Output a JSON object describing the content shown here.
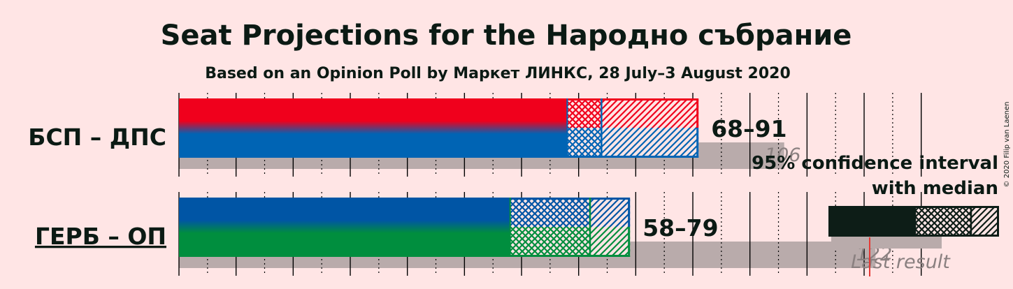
{
  "title": "Seat Projections for the Народно събрание",
  "subtitle": "Based on an Opinion Poll by Маркет ЛИНКС, 28 July–3 August 2020",
  "copyright": "© 2020 Filip van Laenen",
  "chart_data": {
    "type": "bar",
    "xlim": [
      0,
      130
    ],
    "majority": 121,
    "parties": [
      {
        "name": "БСП – ДПС",
        "underlined": false,
        "low": 68,
        "ci_mid_low": 74,
        "median": 74,
        "ci_mid_high": 75,
        "high": 91,
        "range_label": "68–91",
        "last_result": 106,
        "last_label": "106",
        "colors": [
          "#F0001C",
          "#0064B4"
        ]
      },
      {
        "name": "ГЕРБ – ОП",
        "underlined": true,
        "low": 58,
        "ci_mid_low": 58,
        "median": 72,
        "ci_mid_high": 72,
        "high": 79,
        "range_label": "58–79",
        "last_result": 122,
        "last_label": "122",
        "colors": [
          "#0055A5",
          "#008E3E"
        ]
      }
    ],
    "legend": {
      "line1": "95% confidence interval",
      "line2": "with median",
      "last_result": "Last result"
    },
    "colors": {
      "background": "#FFE5E5",
      "last_result_bar": "#B9ABAB",
      "legend_dark": "#0D1D17",
      "majority_line": "#E53935"
    }
  }
}
